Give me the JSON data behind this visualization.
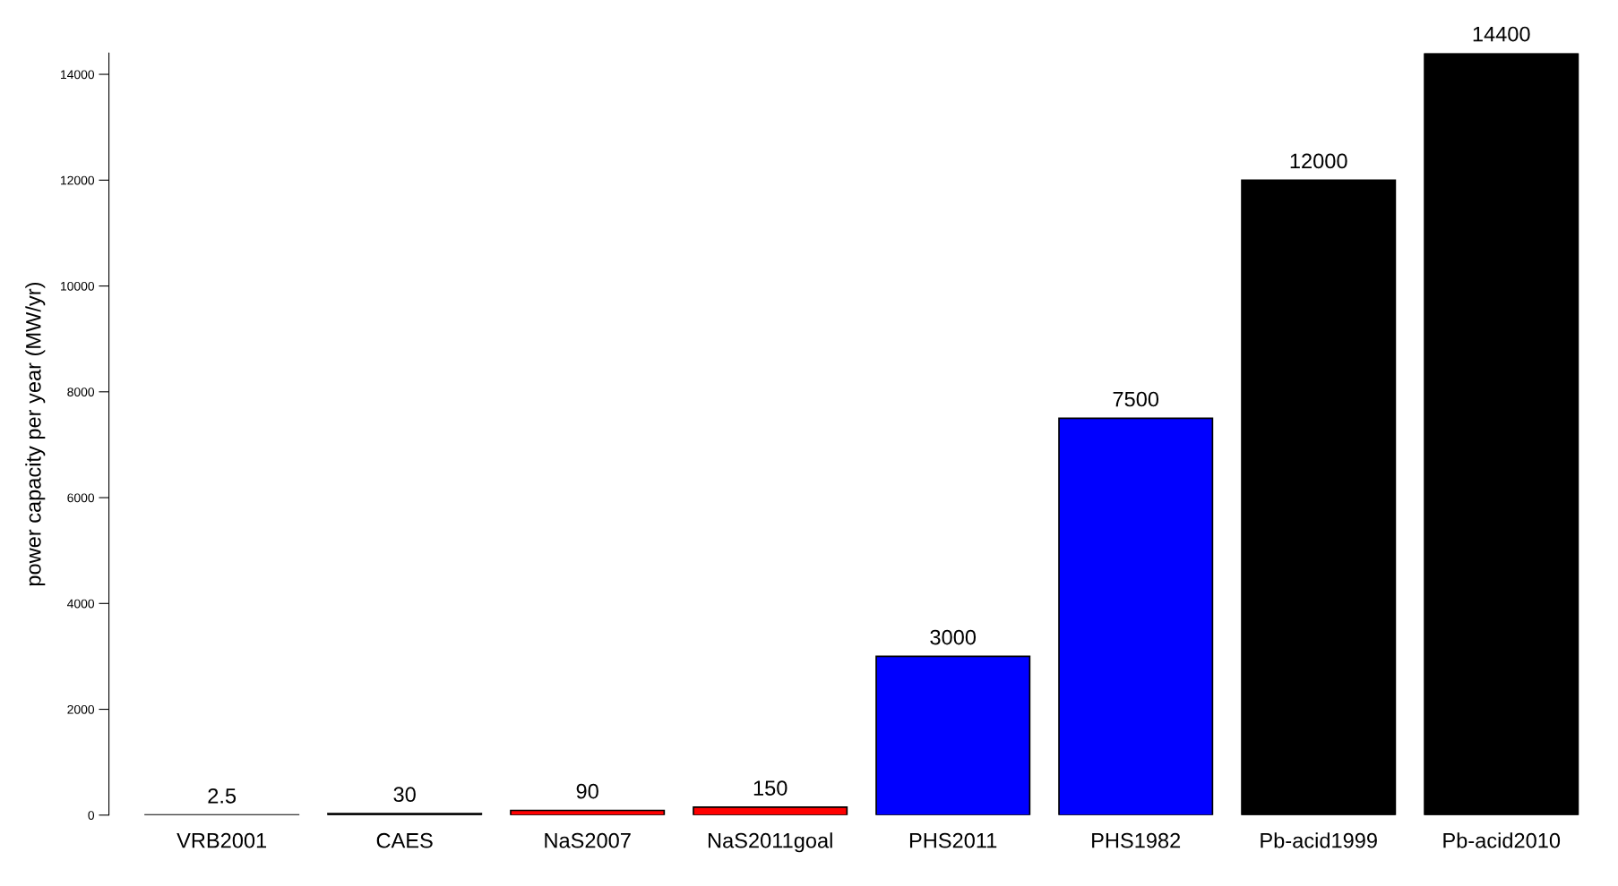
{
  "chart_data": {
    "type": "bar",
    "ylabel": "power capacity per year (MW/yr)",
    "categories": [
      "VRB2001",
      "CAES",
      "NaS2007",
      "NaS2011goal",
      "PHS2011",
      "PHS1982",
      "Pb-acid1999",
      "Pb-acid2010"
    ],
    "values": [
      2.5,
      30,
      90,
      150,
      3000,
      7500,
      12000,
      14400
    ],
    "colors": [
      "#ffffff",
      "#000000",
      "#ff0000",
      "#ff0000",
      "#0000ff",
      "#0000ff",
      "#000000",
      "#000000"
    ],
    "ylim": [
      0,
      14400
    ],
    "yticks": [
      0,
      2000,
      4000,
      6000,
      8000,
      10000,
      12000,
      14000
    ],
    "data_labels": true,
    "grid": false,
    "legend": false
  }
}
